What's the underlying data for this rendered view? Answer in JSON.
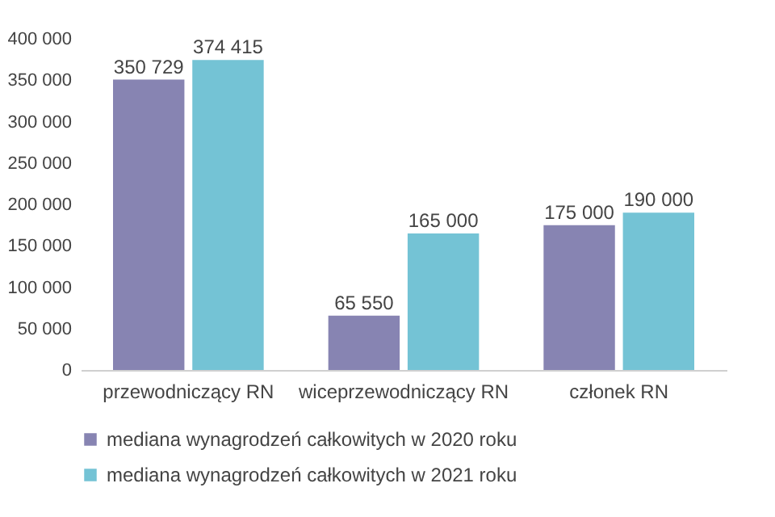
{
  "chart_data": {
    "type": "bar",
    "categories": [
      "przewodniczący RN",
      "wiceprzewodniczący RN",
      "członek RN"
    ],
    "series": [
      {
        "name": "mediana wynagrodzeń całkowitych w 2020 roku",
        "color": "#8784b2",
        "values": [
          350729,
          65550,
          175000
        ],
        "value_labels": [
          "350 729",
          "65 550",
          "175 000"
        ]
      },
      {
        "name": "mediana wynagrodzeń całkowitych w 2021 roku",
        "color": "#74c3d5",
        "values": [
          374415,
          165000,
          190000
        ],
        "value_labels": [
          "374 415",
          "165 000",
          "190 000"
        ]
      }
    ],
    "ylim": [
      0,
      400000
    ],
    "yticks": [
      0,
      {
        "value": 50000,
        "label": "50 000"
      },
      {
        "value": 100000,
        "label": "100 000"
      },
      {
        "value": 150000,
        "label": "150 000"
      },
      {
        "value": 200000,
        "label": "200 000"
      },
      {
        "value": 250000,
        "label": "250 000"
      },
      {
        "value": 300000,
        "label": "300 000"
      },
      {
        "value": 350000,
        "label": "350 000"
      },
      {
        "value": 400000,
        "label": "400 000"
      }
    ],
    "grid": false,
    "legend": "bottom"
  }
}
